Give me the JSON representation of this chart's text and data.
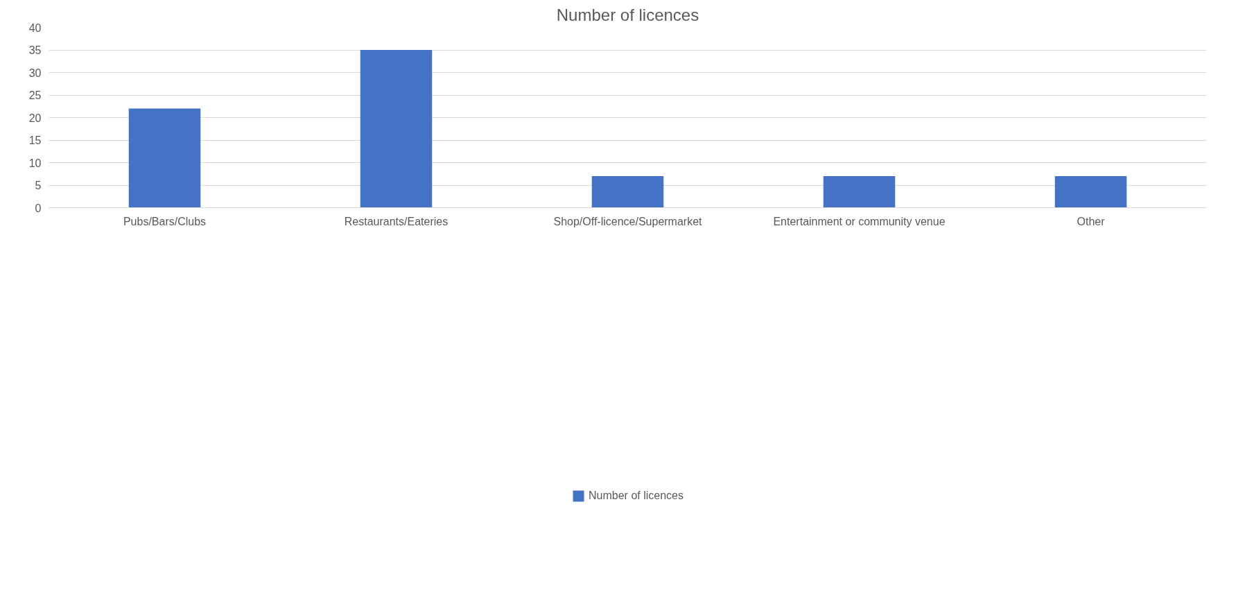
{
  "chart_data": {
    "type": "bar",
    "title": "Number of licences",
    "categories": [
      "Pubs/Bars/Clubs",
      "Restaurants/Eateries",
      "Shop/Off-licence/Supermarket",
      "Entertainment or community venue",
      "Other"
    ],
    "series": [
      {
        "name": "Number of licences",
        "color": "#4472c4",
        "values": [
          22,
          35,
          7,
          7,
          7
        ]
      }
    ],
    "ylim": [
      0,
      40
    ],
    "yticks": [
      0,
      5,
      10,
      15,
      20,
      25,
      30,
      35,
      40
    ],
    "grid": "y",
    "legend": "bottom"
  }
}
